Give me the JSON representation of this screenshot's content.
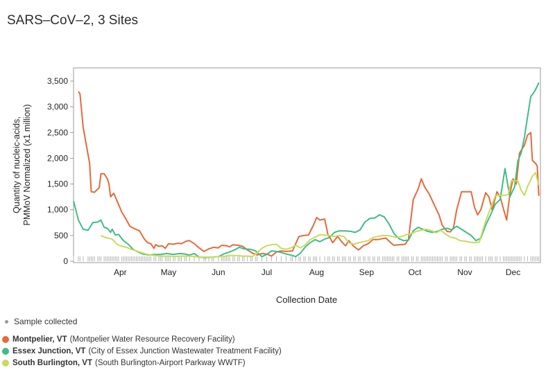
{
  "title": "SARS–CoV–2, 3 Sites",
  "sample_note": "Sample collected",
  "legend": [
    {
      "place": "Montpelier, VT",
      "facility": "(Montpelier Water Resource Recovery Facility)",
      "color": "#e8683a"
    },
    {
      "place": "Essex Junction, VT",
      "facility": "(City of Essex Junction Wastewater Treatment Facility)",
      "color": "#3ebd86"
    },
    {
      "place": "South Burlington, VT",
      "facility": "(South Burlington-Airport Parkway WWTF)",
      "color": "#c8db5a"
    }
  ],
  "chart_data": {
    "type": "line",
    "xlabel": "Collection Date",
    "ylabel": [
      "Quantity of nucleic-acids,",
      "PMMoV Normalized (x1 million)"
    ],
    "ylim": [
      0,
      3500
    ],
    "yticks": [
      0,
      500,
      1000,
      1500,
      2000,
      2500,
      3000,
      3500
    ],
    "ytick_labels": [
      "0",
      "500",
      "1,000",
      "1,500",
      "2,000",
      "2,500",
      "3,000",
      "3,500"
    ],
    "x_range_days": [
      0,
      290
    ],
    "month_ticks": [
      {
        "label": "Apr",
        "day": 29
      },
      {
        "label": "May",
        "day": 59
      },
      {
        "label": "Jun",
        "day": 90
      },
      {
        "label": "Jul",
        "day": 120
      },
      {
        "label": "Aug",
        "day": 151
      },
      {
        "label": "Sep",
        "day": 182
      },
      {
        "label": "Oct",
        "day": 212
      },
      {
        "label": "Nov",
        "day": 243
      },
      {
        "label": "Dec",
        "day": 273
      }
    ],
    "grid": false,
    "legend_position": "bottom-left",
    "series": [
      {
        "name": "Montpelier, VT",
        "color": "#e8683a",
        "points": [
          [
            3,
            3300
          ],
          [
            4,
            3250
          ],
          [
            6,
            2600
          ],
          [
            10,
            1900
          ],
          [
            11,
            1350
          ],
          [
            13,
            1340
          ],
          [
            16,
            1430
          ],
          [
            17,
            1700
          ],
          [
            19,
            1700
          ],
          [
            21,
            1600
          ],
          [
            22,
            1500
          ],
          [
            23,
            1250
          ],
          [
            25,
            1320
          ],
          [
            28,
            1100
          ],
          [
            30,
            950
          ],
          [
            32,
            850
          ],
          [
            35,
            680
          ],
          [
            38,
            630
          ],
          [
            41,
            590
          ],
          [
            44,
            430
          ],
          [
            46,
            360
          ],
          [
            48,
            340
          ],
          [
            50,
            250
          ],
          [
            51,
            320
          ],
          [
            53,
            290
          ],
          [
            55,
            300
          ],
          [
            57,
            250
          ],
          [
            59,
            340
          ],
          [
            62,
            330
          ],
          [
            65,
            350
          ],
          [
            67,
            340
          ],
          [
            70,
            390
          ],
          [
            72,
            400
          ],
          [
            75,
            340
          ],
          [
            78,
            260
          ],
          [
            81,
            190
          ],
          [
            84,
            240
          ],
          [
            87,
            270
          ],
          [
            90,
            260
          ],
          [
            92,
            310
          ],
          [
            95,
            300
          ],
          [
            97,
            280
          ],
          [
            99,
            320
          ],
          [
            102,
            310
          ],
          [
            105,
            290
          ],
          [
            108,
            220
          ],
          [
            111,
            160
          ],
          [
            114,
            120
          ],
          [
            117,
            150
          ],
          [
            120,
            140
          ],
          [
            123,
            100
          ],
          [
            126,
            180
          ],
          [
            129,
            200
          ],
          [
            132,
            190
          ],
          [
            136,
            200
          ],
          [
            140,
            480
          ],
          [
            143,
            500
          ],
          [
            146,
            510
          ],
          [
            149,
            700
          ],
          [
            151,
            850
          ],
          [
            153,
            800
          ],
          [
            156,
            820
          ],
          [
            158,
            520
          ],
          [
            161,
            360
          ],
          [
            164,
            480
          ],
          [
            167,
            360
          ],
          [
            169,
            300
          ],
          [
            171,
            400
          ],
          [
            174,
            290
          ],
          [
            177,
            220
          ],
          [
            180,
            300
          ],
          [
            183,
            340
          ],
          [
            186,
            420
          ],
          [
            189,
            420
          ],
          [
            192,
            440
          ],
          [
            194,
            450
          ],
          [
            197,
            360
          ],
          [
            199,
            310
          ],
          [
            202,
            320
          ],
          [
            206,
            330
          ],
          [
            208,
            420
          ],
          [
            211,
            1200
          ],
          [
            214,
            1400
          ],
          [
            216,
            1600
          ],
          [
            218,
            1450
          ],
          [
            221,
            1300
          ],
          [
            224,
            1100
          ],
          [
            227,
            900
          ],
          [
            229,
            700
          ],
          [
            232,
            580
          ],
          [
            234,
            570
          ],
          [
            236,
            650
          ],
          [
            238,
            1000
          ],
          [
            241,
            1350
          ],
          [
            244,
            1350
          ],
          [
            247,
            1350
          ],
          [
            249,
            1050
          ],
          [
            251,
            900
          ],
          [
            253,
            1000
          ],
          [
            256,
            1330
          ],
          [
            258,
            1250
          ],
          [
            260,
            1000
          ],
          [
            263,
            1350
          ],
          [
            265,
            1250
          ],
          [
            267,
            1020
          ],
          [
            269,
            800
          ],
          [
            271,
            1300
          ],
          [
            273,
            1600
          ],
          [
            275,
            1500
          ],
          [
            277,
            2100
          ],
          [
            280,
            2250
          ],
          [
            282,
            2450
          ],
          [
            284,
            2500
          ],
          [
            285,
            1960
          ],
          [
            287,
            1900
          ],
          [
            288,
            1850
          ],
          [
            289,
            1270
          ]
        ]
      },
      {
        "name": "Essex Junction, VT",
        "color": "#3ebd86",
        "points": [
          [
            0,
            1170
          ],
          [
            3,
            800
          ],
          [
            6,
            620
          ],
          [
            9,
            600
          ],
          [
            12,
            750
          ],
          [
            15,
            760
          ],
          [
            17,
            800
          ],
          [
            19,
            660
          ],
          [
            21,
            640
          ],
          [
            23,
            560
          ],
          [
            24,
            620
          ],
          [
            26,
            510
          ],
          [
            28,
            520
          ],
          [
            31,
            400
          ],
          [
            34,
            330
          ],
          [
            37,
            230
          ],
          [
            40,
            180
          ],
          [
            43,
            140
          ],
          [
            47,
            120
          ],
          [
            50,
            130
          ],
          [
            54,
            130
          ],
          [
            58,
            150
          ],
          [
            62,
            130
          ],
          [
            66,
            150
          ],
          [
            69,
            140
          ],
          [
            72,
            120
          ],
          [
            75,
            150
          ],
          [
            78,
            80
          ],
          [
            82,
            70
          ],
          [
            86,
            80
          ],
          [
            90,
            90
          ],
          [
            94,
            150
          ],
          [
            97,
            180
          ],
          [
            100,
            220
          ],
          [
            103,
            270
          ],
          [
            106,
            240
          ],
          [
            110,
            230
          ],
          [
            113,
            200
          ],
          [
            117,
            90
          ],
          [
            120,
            130
          ],
          [
            123,
            200
          ],
          [
            126,
            190
          ],
          [
            129,
            170
          ],
          [
            132,
            140
          ],
          [
            135,
            120
          ],
          [
            138,
            90
          ],
          [
            141,
            160
          ],
          [
            144,
            280
          ],
          [
            147,
            360
          ],
          [
            150,
            420
          ],
          [
            153,
            380
          ],
          [
            156,
            430
          ],
          [
            159,
            460
          ],
          [
            162,
            560
          ],
          [
            165,
            590
          ],
          [
            169,
            590
          ],
          [
            172,
            580
          ],
          [
            175,
            560
          ],
          [
            178,
            610
          ],
          [
            181,
            760
          ],
          [
            184,
            830
          ],
          [
            187,
            840
          ],
          [
            190,
            900
          ],
          [
            193,
            860
          ],
          [
            196,
            720
          ],
          [
            199,
            540
          ],
          [
            202,
            440
          ],
          [
            205,
            400
          ],
          [
            208,
            410
          ],
          [
            211,
            590
          ],
          [
            214,
            660
          ],
          [
            217,
            620
          ],
          [
            220,
            580
          ],
          [
            223,
            560
          ],
          [
            226,
            580
          ],
          [
            229,
            620
          ],
          [
            232,
            640
          ],
          [
            235,
            610
          ],
          [
            238,
            680
          ],
          [
            241,
            620
          ],
          [
            244,
            560
          ],
          [
            247,
            500
          ],
          [
            250,
            400
          ],
          [
            253,
            450
          ],
          [
            256,
            700
          ],
          [
            259,
            900
          ],
          [
            262,
            1110
          ],
          [
            265,
            1200
          ],
          [
            268,
            1800
          ],
          [
            271,
            1250
          ],
          [
            274,
            1450
          ],
          [
            276,
            1950
          ],
          [
            278,
            2100
          ],
          [
            280,
            2400
          ],
          [
            282,
            2800
          ],
          [
            284,
            3200
          ],
          [
            286,
            3280
          ],
          [
            288,
            3400
          ],
          [
            289,
            3470
          ]
        ]
      },
      {
        "name": "South Burlington, VT",
        "color": "#c8db5a",
        "points": [
          [
            17,
            500
          ],
          [
            20,
            460
          ],
          [
            24,
            430
          ],
          [
            27,
            330
          ],
          [
            30,
            290
          ],
          [
            33,
            270
          ],
          [
            36,
            230
          ],
          [
            39,
            200
          ],
          [
            42,
            170
          ],
          [
            45,
            140
          ],
          [
            48,
            120
          ],
          [
            51,
            110
          ],
          [
            54,
            100
          ],
          [
            57,
            100
          ],
          [
            60,
            100
          ],
          [
            63,
            90
          ],
          [
            66,
            100
          ],
          [
            69,
            100
          ],
          [
            72,
            100
          ],
          [
            75,
            90
          ],
          [
            78,
            80
          ],
          [
            81,
            80
          ],
          [
            84,
            80
          ],
          [
            87,
            80
          ],
          [
            90,
            90
          ],
          [
            93,
            90
          ],
          [
            96,
            110
          ],
          [
            99,
            110
          ],
          [
            102,
            110
          ],
          [
            105,
            100
          ],
          [
            108,
            100
          ],
          [
            111,
            90
          ],
          [
            114,
            160
          ],
          [
            117,
            250
          ],
          [
            120,
            300
          ],
          [
            123,
            320
          ],
          [
            126,
            330
          ],
          [
            129,
            250
          ],
          [
            132,
            230
          ],
          [
            135,
            260
          ],
          [
            138,
            310
          ],
          [
            141,
            260
          ],
          [
            144,
            320
          ],
          [
            147,
            420
          ],
          [
            150,
            470
          ],
          [
            153,
            510
          ],
          [
            156,
            510
          ],
          [
            159,
            500
          ],
          [
            162,
            480
          ],
          [
            165,
            500
          ],
          [
            168,
            480
          ],
          [
            171,
            360
          ],
          [
            174,
            330
          ],
          [
            177,
            360
          ],
          [
            180,
            380
          ],
          [
            183,
            400
          ],
          [
            186,
            460
          ],
          [
            189,
            480
          ],
          [
            192,
            500
          ],
          [
            195,
            500
          ],
          [
            198,
            480
          ],
          [
            201,
            460
          ],
          [
            204,
            480
          ],
          [
            207,
            520
          ],
          [
            210,
            540
          ],
          [
            213,
            580
          ],
          [
            216,
            600
          ],
          [
            219,
            620
          ],
          [
            222,
            600
          ],
          [
            225,
            550
          ],
          [
            228,
            600
          ],
          [
            231,
            530
          ],
          [
            234,
            470
          ],
          [
            237,
            450
          ],
          [
            240,
            400
          ],
          [
            243,
            390
          ],
          [
            246,
            370
          ],
          [
            249,
            360
          ],
          [
            252,
            370
          ],
          [
            254,
            580
          ],
          [
            256,
            780
          ],
          [
            259,
            1030
          ],
          [
            262,
            1270
          ],
          [
            265,
            1280
          ],
          [
            268,
            1280
          ],
          [
            270,
            1300
          ],
          [
            272,
            1570
          ],
          [
            274,
            1560
          ],
          [
            276,
            1560
          ],
          [
            278,
            1380
          ],
          [
            280,
            1280
          ],
          [
            282,
            1450
          ],
          [
            285,
            1650
          ],
          [
            287,
            1720
          ],
          [
            289,
            1470
          ]
        ]
      }
    ]
  }
}
